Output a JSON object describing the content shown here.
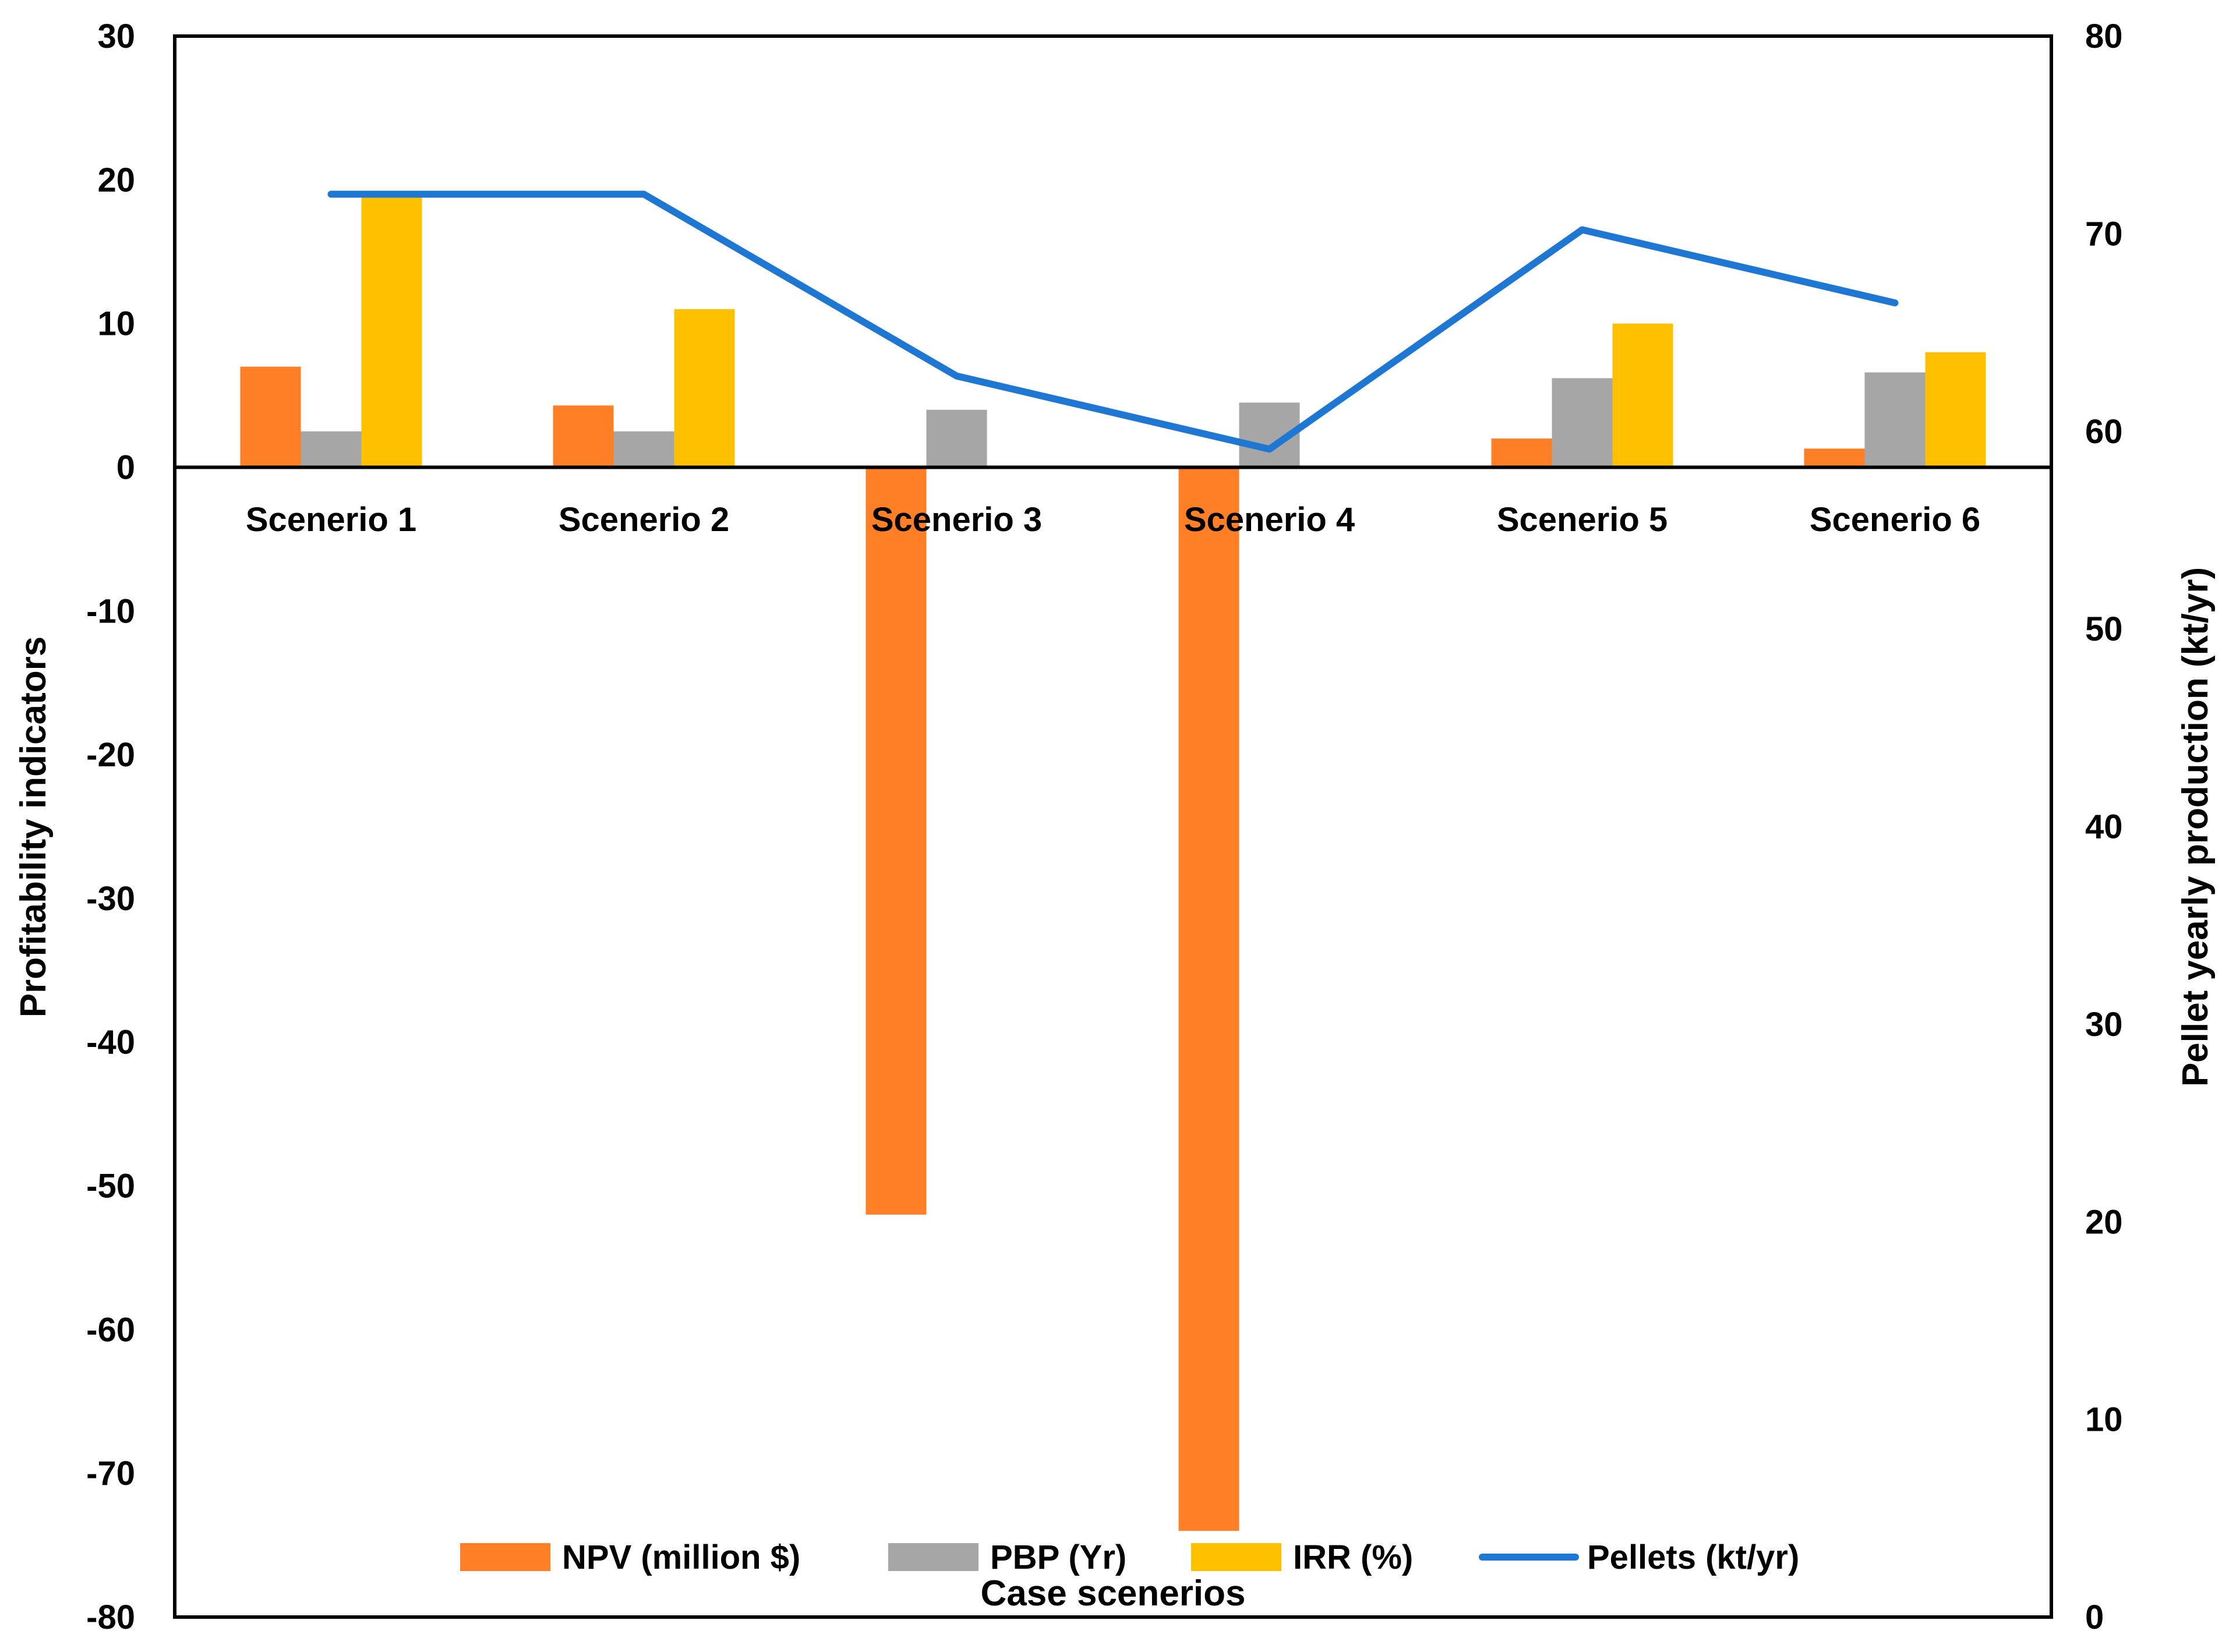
{
  "chart_data": {
    "type": "bar",
    "title": "",
    "xlabel": "Case scenerios",
    "ylabel": "Profitability indicators",
    "y2label": "Pellet yearly production (kt/yr)",
    "ylim": [
      -80,
      30
    ],
    "y2lim": [
      0,
      80
    ],
    "yticks": [
      "30",
      "20",
      "10",
      "0",
      "-10",
      "-20",
      "-30",
      "-40",
      "-50",
      "-60",
      "-70",
      "-80"
    ],
    "y2ticks": [
      "80",
      "70",
      "60",
      "50",
      "40",
      "30",
      "20",
      "10",
      "0"
    ],
    "categories": [
      "Scenerio 1",
      "Scenerio 2",
      "Scenerio 3",
      "Scenerio 4",
      "Scenerio 5",
      "Scenerio 6"
    ],
    "series": [
      {
        "name": "NPV (million $)",
        "type": "bar",
        "axis": "left",
        "color": "#FF7F27",
        "values": [
          7.0,
          4.3,
          -52,
          -74,
          2.0,
          1.3
        ]
      },
      {
        "name": "PBP (Yr)",
        "type": "bar",
        "axis": "left",
        "color": "#A6A6A6",
        "values": [
          2.5,
          2.5,
          4.0,
          4.5,
          6.2,
          6.6
        ]
      },
      {
        "name": "IRR (%)",
        "type": "bar",
        "axis": "left",
        "color": "#FFC000",
        "values": [
          19,
          11,
          0,
          0,
          10,
          8
        ]
      },
      {
        "name": "Pellets (kt/yr)",
        "type": "line",
        "axis": "right",
        "color": "#1F77D4",
        "values": [
          72,
          72,
          62.8,
          59.1,
          70.2,
          66.5
        ]
      }
    ],
    "legend": "bottom-inside"
  }
}
